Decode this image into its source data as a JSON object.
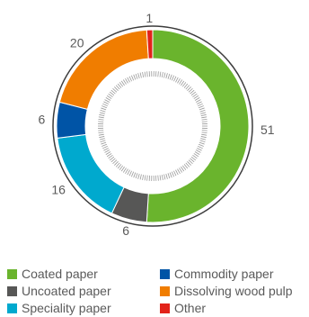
{
  "chart_data": {
    "type": "pie",
    "title": "",
    "categories": [
      "Coated paper",
      "Uncoated paper",
      "Speciality paper",
      "Commodity paper",
      "Dissolving wood pulp",
      "Other"
    ],
    "values": [
      51,
      6,
      16,
      6,
      20,
      1
    ],
    "colors": [
      "#6ab42d",
      "#575756",
      "#00a9ce",
      "#0054a6",
      "#f07d00",
      "#e2231a"
    ],
    "start_angle_deg": 0,
    "direction": "clockwise",
    "donut": true,
    "data_labels": [
      "51",
      "6",
      "16",
      "6",
      "20",
      "1"
    ],
    "legend": {
      "placement": "bottom",
      "columns": [
        [
          "Coated paper",
          "Uncoated paper",
          "Speciality paper"
        ],
        [
          "Commodity paper",
          "Dissolving wood pulp",
          "Other"
        ]
      ]
    }
  }
}
